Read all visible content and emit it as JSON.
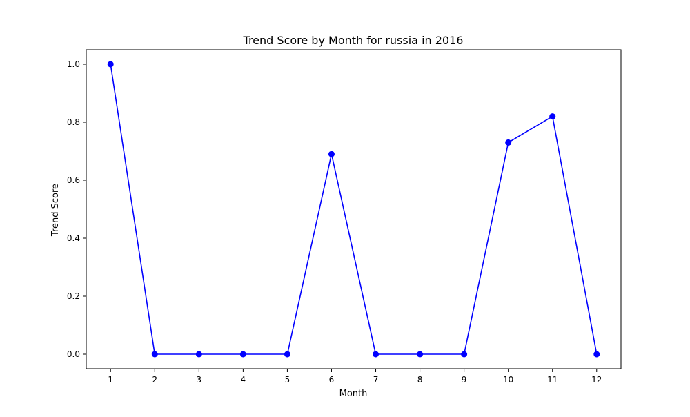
{
  "chart_data": {
    "type": "line",
    "title": "Trend Score by Month for russia in 2016",
    "xlabel": "Month",
    "ylabel": "Trend Score",
    "xlim": [
      0.45,
      12.55
    ],
    "ylim": [
      -0.05,
      1.05
    ],
    "x_ticks": [
      1,
      2,
      3,
      4,
      5,
      6,
      7,
      8,
      9,
      10,
      11,
      12
    ],
    "y_ticks": [
      0.0,
      0.2,
      0.4,
      0.6,
      0.8,
      1.0
    ],
    "y_tick_labels": [
      "0.0",
      "0.2",
      "0.4",
      "0.6",
      "0.8",
      "1.0"
    ],
    "grid": false,
    "legend": "none",
    "series": [
      {
        "color": "#0000ff",
        "marker": "circle",
        "x": [
          1,
          2,
          3,
          4,
          5,
          6,
          7,
          8,
          9,
          10,
          11,
          12
        ],
        "values": [
          1.0,
          0.0,
          0.0,
          0.0,
          0.0,
          0.69,
          0.0,
          0.0,
          0.0,
          0.73,
          0.82,
          0.0
        ]
      }
    ]
  }
}
